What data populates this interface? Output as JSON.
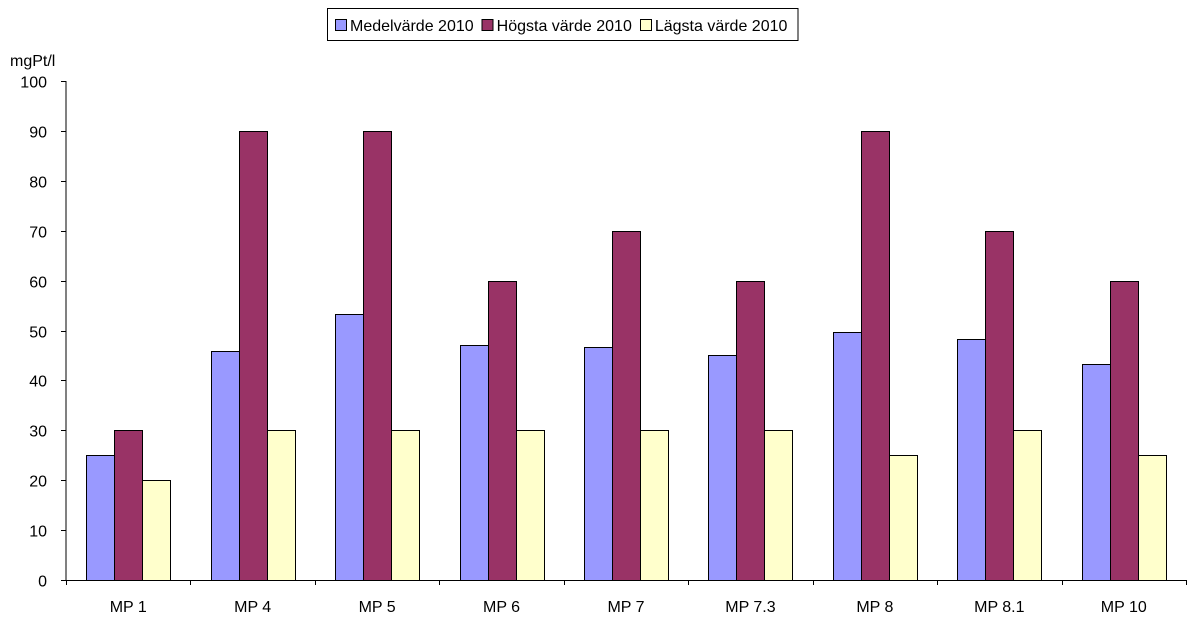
{
  "chart_data": {
    "type": "bar",
    "ylabel": "mgPt/l",
    "xlabel": "",
    "ylim": [
      0,
      100
    ],
    "yticks": [
      0,
      10,
      20,
      30,
      40,
      50,
      60,
      70,
      80,
      90,
      100
    ],
    "grid": false,
    "legend_position": "top",
    "categories": [
      "MP 1",
      "MP 4",
      "MP 5",
      "MP 6",
      "MP 7",
      "MP 7.3",
      "MP 8",
      "MP 8.1",
      "MP 10"
    ],
    "series": [
      {
        "name": "Medelvärde 2010",
        "color": "#9999ff",
        "values": [
          25,
          45.8,
          53.3,
          47,
          46.7,
          45,
          49.6,
          48.3,
          43.3
        ]
      },
      {
        "name": "Högsta värde 2010",
        "color": "#993366",
        "values": [
          30,
          90,
          90,
          60,
          70,
          60,
          90,
          70,
          60
        ]
      },
      {
        "name": "Lägsta värde 2010",
        "color": "#ffffcc",
        "values": [
          20,
          30,
          30,
          30,
          30,
          30,
          25,
          30,
          25
        ]
      }
    ]
  }
}
